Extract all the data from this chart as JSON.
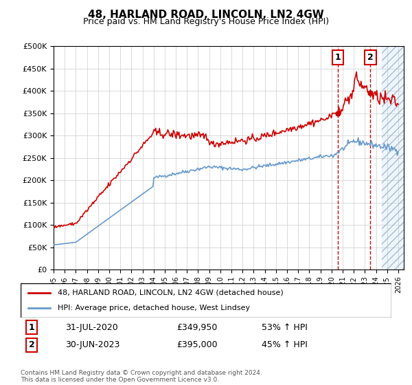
{
  "title": "48, HARLAND ROAD, LINCOLN, LN2 4GW",
  "subtitle": "Price paid vs. HM Land Registry's House Price Index (HPI)",
  "legend_line1": "48, HARLAND ROAD, LINCOLN, LN2 4GW (detached house)",
  "legend_line2": "HPI: Average price, detached house, West Lindsey",
  "annotation1_label": "1",
  "annotation1_date": "31-JUL-2020",
  "annotation1_price": "£349,950",
  "annotation1_pct": "53% ↑ HPI",
  "annotation2_label": "2",
  "annotation2_date": "30-JUN-2023",
  "annotation2_price": "£395,000",
  "annotation2_pct": "45% ↑ HPI",
  "footer": "Contains HM Land Registry data © Crown copyright and database right 2024.\nThis data is licensed under the Open Government Licence v3.0.",
  "red_color": "#cc0000",
  "blue_color": "#6699cc",
  "highlight_color": "#ddeeff",
  "hatch_color": "#aabbcc",
  "ylim": [
    0,
    500000
  ],
  "yticks": [
    0,
    50000,
    100000,
    150000,
    200000,
    250000,
    300000,
    350000,
    400000,
    450000,
    500000
  ],
  "xstart_year": 1995,
  "xend_year": 2026
}
